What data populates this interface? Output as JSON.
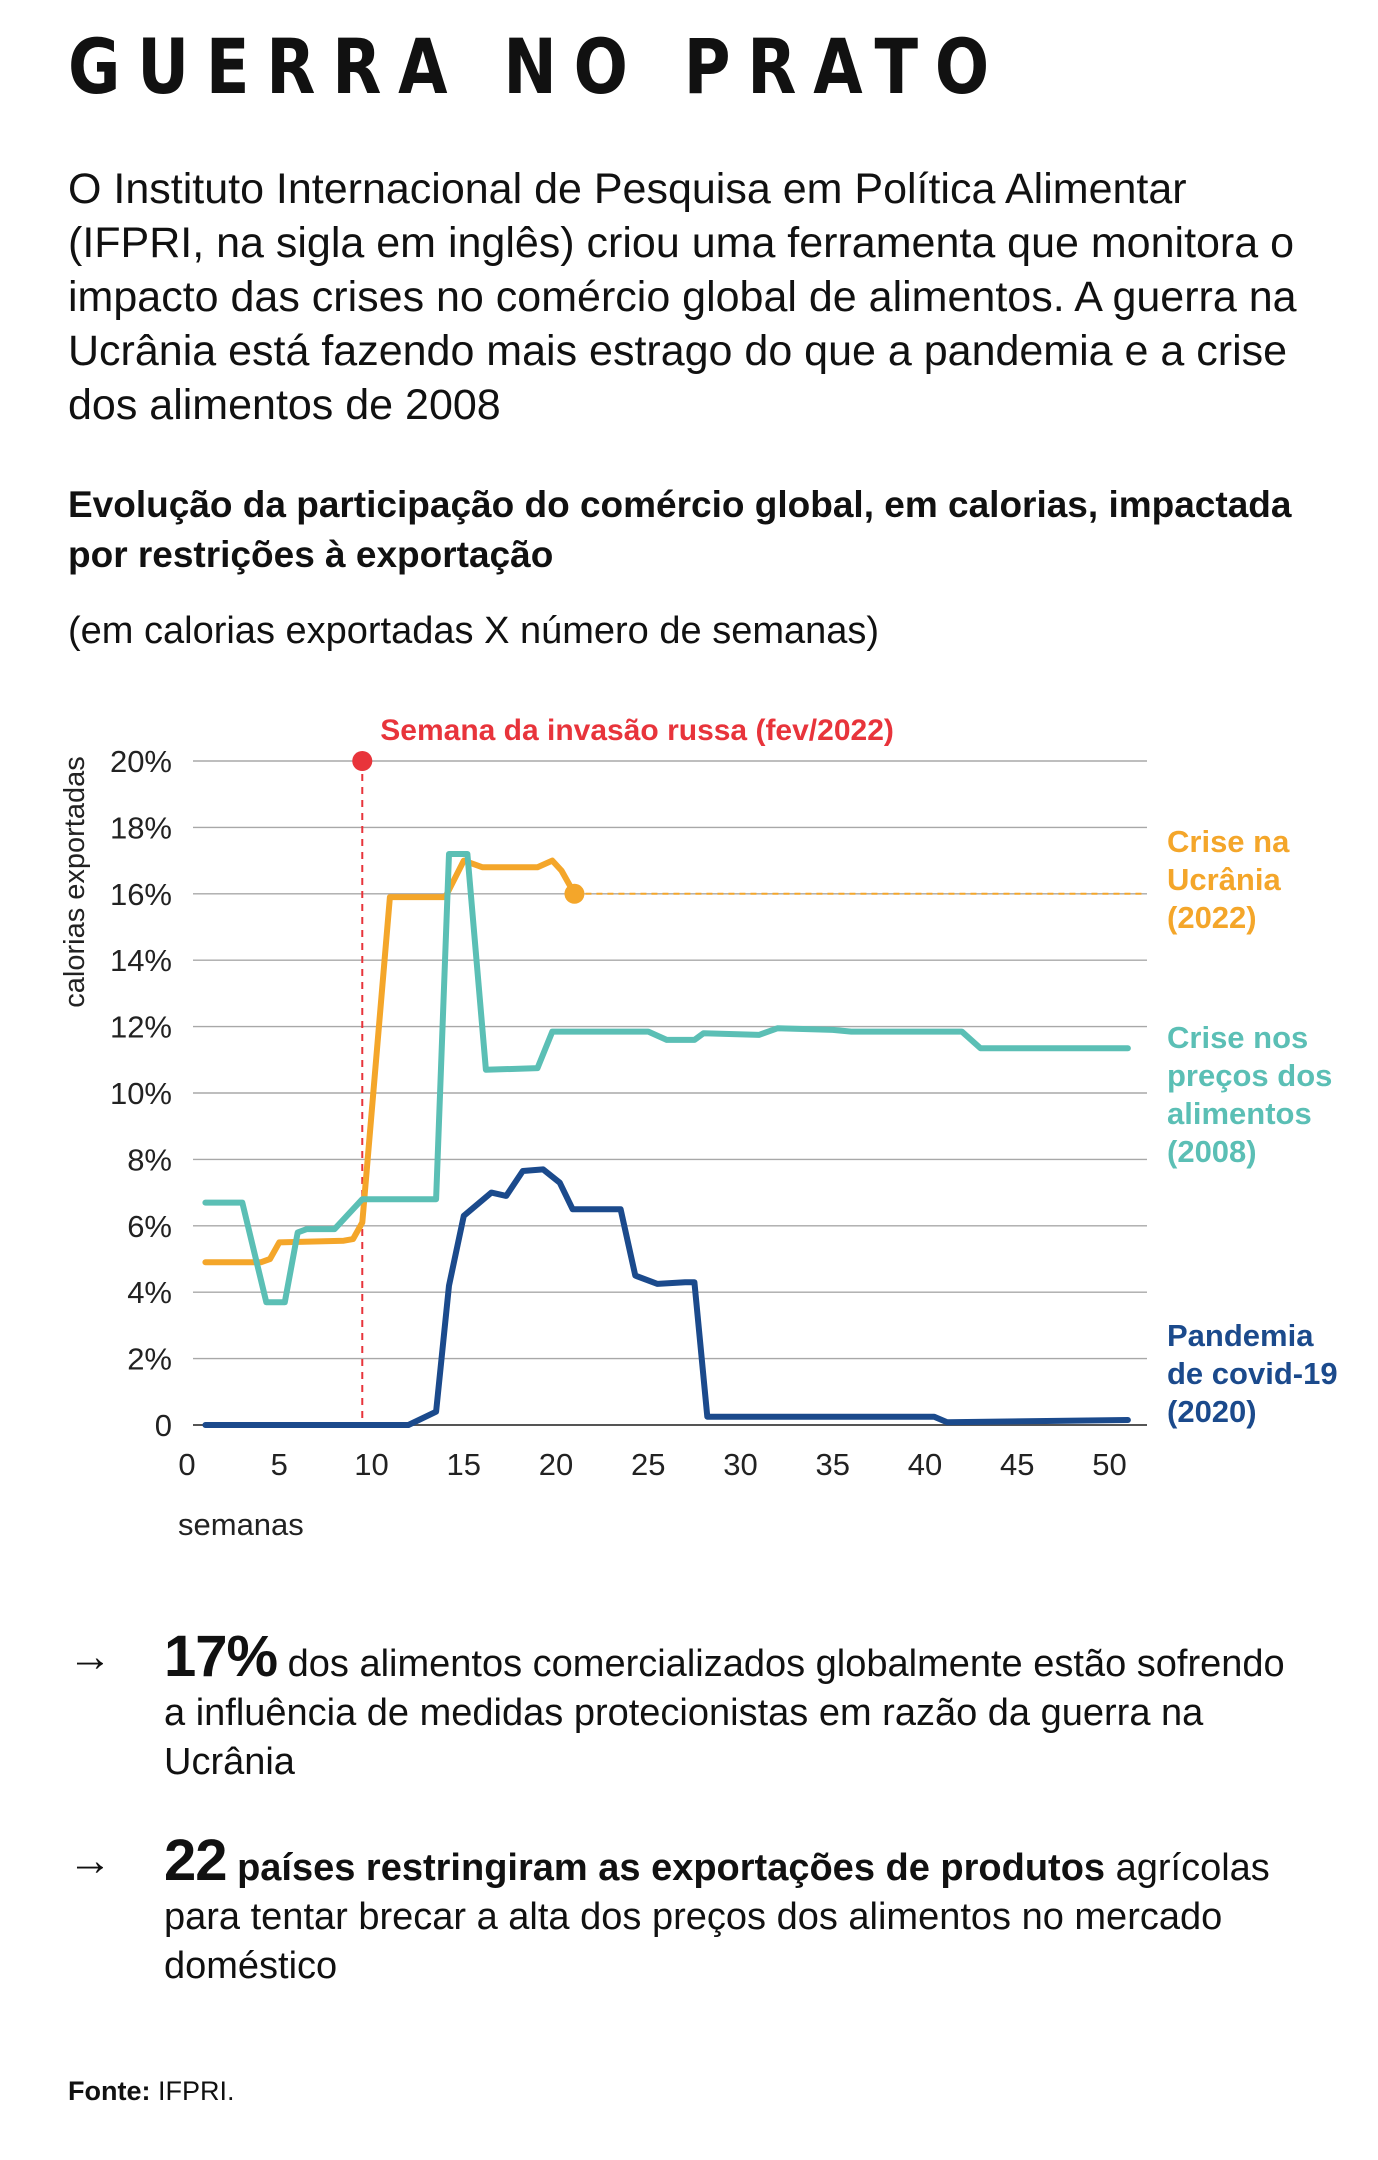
{
  "title": "GUERRA NO PRATO",
  "intro": "O Instituto Internacional de Pesquisa em Política Alimentar (IFPRI, na sigla em inglês) criou uma ferramenta que monitora o impacto das crises no comércio global de alimentos. A guerra na Ucrânia está fazendo mais estrago do que a pandemia e a crise dos alimentos de 2008",
  "subtitle": "Evolução da participação do comércio global, em calorias, impactada por restrições à exportação",
  "units_note": "(em calorias exportadas X número de semanas)",
  "chart_data": {
    "type": "line",
    "xlabel": "semanas",
    "ylabel": "calorias exportadas",
    "xlim": [
      0,
      52
    ],
    "ylim": [
      0,
      20
    ],
    "x_ticks": [
      0,
      5,
      10,
      15,
      20,
      25,
      30,
      35,
      40,
      45,
      50
    ],
    "y_ticks": [
      0,
      2,
      4,
      6,
      8,
      10,
      12,
      14,
      16,
      18,
      20
    ],
    "y_tick_labels": [
      "0",
      "2%",
      "4%",
      "6%",
      "8%",
      "10%",
      "12%",
      "14%",
      "16%",
      "18%",
      "20%"
    ],
    "grid": true,
    "annotation": {
      "label": "Semana da invasão russa (fev/2022)",
      "x": 9.5,
      "color": "#e8343b"
    },
    "series": [
      {
        "name": "Crise na Ucrânia (2022)",
        "color": "#f4a62a",
        "end_marker": true,
        "dashed_extension_to": 52,
        "points": [
          [
            1,
            4.9
          ],
          [
            4,
            4.9
          ],
          [
            4.5,
            5.0
          ],
          [
            5,
            5.5
          ],
          [
            8.5,
            5.55
          ],
          [
            9,
            5.6
          ],
          [
            9.5,
            6.1
          ],
          [
            11,
            15.9
          ],
          [
            14,
            15.9
          ],
          [
            15,
            17.0
          ],
          [
            16,
            16.8
          ],
          [
            19,
            16.8
          ],
          [
            19.8,
            17.0
          ],
          [
            20.3,
            16.7
          ],
          [
            21,
            16.0
          ]
        ]
      },
      {
        "name": "Crise nos preços dos alimentos (2008)",
        "color": "#5bbfb5",
        "points": [
          [
            1,
            6.7
          ],
          [
            3,
            6.7
          ],
          [
            4.3,
            3.7
          ],
          [
            5.3,
            3.7
          ],
          [
            6,
            5.8
          ],
          [
            6.5,
            5.9
          ],
          [
            8,
            5.9
          ],
          [
            9.5,
            6.8
          ],
          [
            13.5,
            6.8
          ],
          [
            14.2,
            17.2
          ],
          [
            15.2,
            17.2
          ],
          [
            16.2,
            10.7
          ],
          [
            19,
            10.75
          ],
          [
            19.8,
            11.85
          ],
          [
            25,
            11.85
          ],
          [
            26,
            11.6
          ],
          [
            27.5,
            11.6
          ],
          [
            28,
            11.8
          ],
          [
            31,
            11.75
          ],
          [
            32,
            11.95
          ],
          [
            35,
            11.9
          ],
          [
            36,
            11.85
          ],
          [
            42,
            11.85
          ],
          [
            43,
            11.35
          ],
          [
            51,
            11.35
          ]
        ]
      },
      {
        "name": "Pandemia de covid-19 (2020)",
        "color": "#1b4a8c",
        "points": [
          [
            1,
            0
          ],
          [
            12,
            0
          ],
          [
            13.5,
            0.4
          ],
          [
            14.2,
            4.2
          ],
          [
            15,
            6.3
          ],
          [
            16.5,
            7.0
          ],
          [
            17.3,
            6.9
          ],
          [
            18.2,
            7.65
          ],
          [
            19.3,
            7.7
          ],
          [
            20.2,
            7.3
          ],
          [
            20.9,
            6.5
          ],
          [
            23,
            6.5
          ],
          [
            23.5,
            6.5
          ],
          [
            24.3,
            4.5
          ],
          [
            25.5,
            4.25
          ],
          [
            27,
            4.3
          ],
          [
            27.5,
            4.3
          ],
          [
            28.2,
            0.25
          ],
          [
            40.5,
            0.25
          ],
          [
            41.2,
            0.08
          ],
          [
            51,
            0.15
          ]
        ]
      }
    ],
    "series_labels": [
      {
        "lines": [
          "Crise na",
          "Ucrânia",
          "(2022)"
        ],
        "color": "#f4a62a"
      },
      {
        "lines": [
          "Crise nos",
          "preços dos",
          "alimentos",
          "(2008)"
        ],
        "color": "#5bbfb5"
      },
      {
        "lines": [
          "Pandemia",
          "de covid-19",
          "(2020)"
        ],
        "color": "#1b4a8c"
      }
    ]
  },
  "stats": [
    {
      "arrow": "→",
      "number": "17%",
      "rest": " dos alimentos comercializados globalmente estão sofrendo a influência de medidas protecionistas em razão da guerra na Ucrânia"
    },
    {
      "arrow": "→",
      "number": "22",
      "bold_text": " países restringiram as exportações de produtos",
      "rest": " agrícolas para tentar brecar a alta dos preços dos alimentos no mercado doméstico"
    }
  ],
  "source": {
    "label": "Fonte:",
    "text": " IFPRI."
  }
}
